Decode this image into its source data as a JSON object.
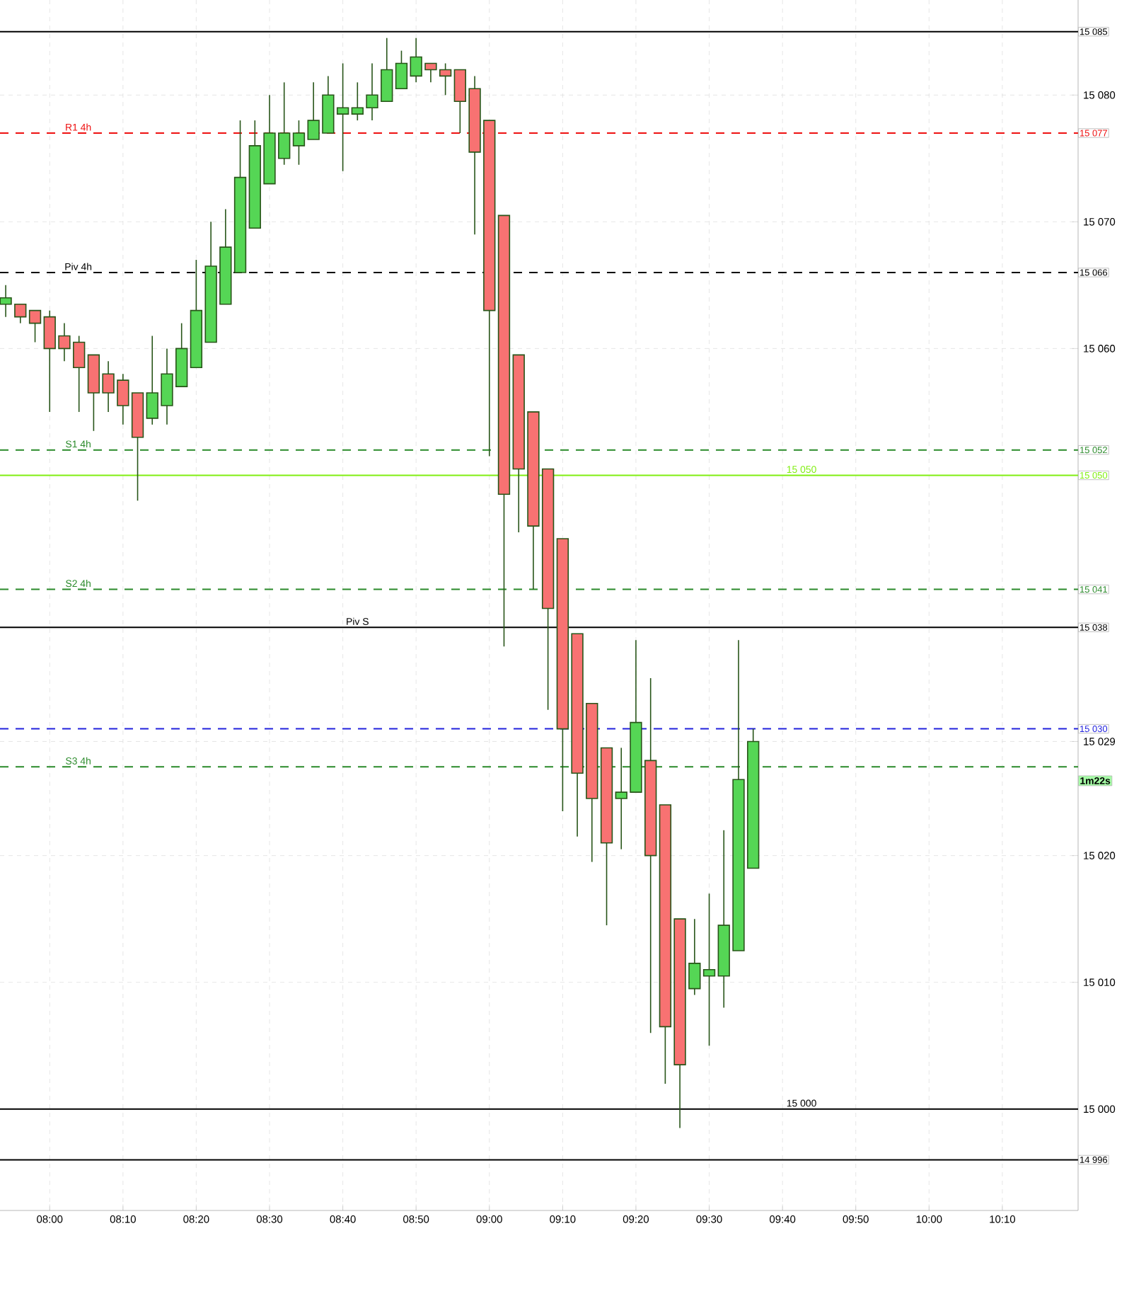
{
  "chart_data": {
    "type": "candlestick",
    "x": [
      7.9,
      7.9333,
      7.9667,
      8,
      8.0333,
      8.0667,
      8.1,
      8.1333,
      8.1667,
      8.2,
      8.2333,
      8.2667,
      8.3,
      8.3333,
      8.3667,
      8.4,
      8.4333,
      8.4667,
      8.5,
      8.5333,
      8.5667,
      8.6,
      8.6333,
      8.6667,
      8.7,
      8.7333,
      8.7667,
      8.8,
      8.8333,
      8.8667,
      8.9,
      8.9333,
      8.9667,
      9,
      9.0333,
      9.0667,
      9.1,
      9.1333,
      9.1667,
      9.2,
      9.2333,
      9.2667,
      9.3,
      9.3333,
      9.3667,
      9.4,
      9.4333,
      9.4667,
      9.5,
      9.5333,
      9.5667,
      9.6
    ],
    "ohlc": [
      [
        15063.5,
        15065,
        15062.5,
        15064
      ],
      [
        15063.5,
        15063.5,
        15062,
        15062.5
      ],
      [
        15063,
        15063,
        15060.5,
        15062
      ],
      [
        15062.5,
        15063,
        15055,
        15060
      ],
      [
        15061,
        15062,
        15059,
        15060
      ],
      [
        15060.5,
        15061,
        15055,
        15058.5
      ],
      [
        15059.5,
        15059.5,
        15053.5,
        15056.5
      ],
      [
        15058,
        15059,
        15055,
        15056.5
      ],
      [
        15057.5,
        15058,
        15054,
        15055.5
      ],
      [
        15056.5,
        15056.5,
        15048,
        15053
      ],
      [
        15054.5,
        15061,
        15054,
        15056.5
      ],
      [
        15055.5,
        15060,
        15054,
        15058
      ],
      [
        15057,
        15062,
        15057,
        15060
      ],
      [
        15058.5,
        15067,
        15058.5,
        15063
      ],
      [
        15060.5,
        15070,
        15060.5,
        15066.5
      ],
      [
        15063.5,
        15071,
        15063.5,
        15068
      ],
      [
        15066,
        15078,
        15066,
        15073.5
      ],
      [
        15069.5,
        15078,
        15069.5,
        15076
      ],
      [
        15073,
        15080,
        15073,
        15077
      ],
      [
        15075,
        15081,
        15074.5,
        15077
      ],
      [
        15076,
        15078,
        15074.5,
        15077
      ],
      [
        15076.5,
        15081,
        15076.5,
        15078
      ],
      [
        15077,
        15081.5,
        15077,
        15080
      ],
      [
        15078.5,
        15082.5,
        15074,
        15079
      ],
      [
        15078.5,
        15081,
        15078,
        15079
      ],
      [
        15079,
        15082.5,
        15078,
        15080
      ],
      [
        15079.5,
        15084.5,
        15079.5,
        15082
      ],
      [
        15080.5,
        15083.5,
        15080.5,
        15082.5
      ],
      [
        15081.5,
        15084.5,
        15081,
        15083
      ],
      [
        15082.5,
        15082.5,
        15081,
        15082
      ],
      [
        15082,
        15082.5,
        15080,
        15081.5
      ],
      [
        15082,
        15082,
        15077,
        15079.5
      ],
      [
        15080.5,
        15081.5,
        15069,
        15075.5
      ],
      [
        15078,
        15078,
        15051.5,
        15063
      ],
      [
        15070.5,
        15070.5,
        15036.5,
        15048.5
      ],
      [
        15059.5,
        15059.5,
        15045.5,
        15050.5
      ],
      [
        15055,
        15055,
        15041,
        15046
      ],
      [
        15050.5,
        15050.5,
        15031.5,
        15039.5
      ],
      [
        15045,
        15045,
        15023.5,
        15030
      ],
      [
        15037.5,
        15037.5,
        15021.5,
        15026.5
      ],
      [
        15032,
        15032,
        15019.5,
        15024.5
      ],
      [
        15028.5,
        15028.5,
        15014.5,
        15021
      ],
      [
        15024.5,
        15028.5,
        15020.5,
        15025
      ],
      [
        15025,
        15037,
        15025,
        15030.5
      ],
      [
        15027.5,
        15034,
        15006,
        15020
      ],
      [
        15024,
        15024,
        15002,
        15006.5
      ],
      [
        15015,
        15015,
        14998.5,
        15003.5
      ],
      [
        15009.5,
        15015,
        15009,
        15011.5
      ],
      [
        15010.5,
        15017,
        15005,
        15011
      ],
      [
        15010.5,
        15022,
        15008,
        15014.5
      ],
      [
        15012.5,
        15037,
        15012.5,
        15026
      ],
      [
        15019,
        15030,
        15019,
        15029
      ]
    ],
    "colors": [
      "#55d655",
      "#f87272",
      "#f87272",
      "#f87272",
      "#f87272",
      "#f87272",
      "#f87272",
      "#f87272",
      "#f87272",
      "#f87272",
      "#55d655",
      "#55d655",
      "#55d655",
      "#55d655",
      "#55d655",
      "#55d655",
      "#55d655",
      "#55d655",
      "#55d655",
      "#55d655",
      "#55d655",
      "#55d655",
      "#55d655",
      "#55d655",
      "#55d655",
      "#55d655",
      "#55d655",
      "#55d655",
      "#55d655",
      "#f87272",
      "#f87272",
      "#f87272",
      "#f87272",
      "#f87272",
      "#f87272",
      "#f87272",
      "#f87272",
      "#f87272",
      "#f87272",
      "#f87272",
      "#f87272",
      "#f87272",
      "#55d655",
      "#55d655",
      "#f87272",
      "#f87272",
      "#f87272",
      "#55d655",
      "#55d655",
      "#55d655",
      "#55d655",
      "#55d655"
    ],
    "xlim": [
      7.887,
      10.339
    ],
    "xticks": [
      {
        "value": 8,
        "label": "08:00"
      },
      {
        "value": 8.1667,
        "label": "08:10"
      },
      {
        "value": 8.3333,
        "label": "08:20"
      },
      {
        "value": 8.5,
        "label": "08:30"
      },
      {
        "value": 8.6667,
        "label": "08:40"
      },
      {
        "value": 8.8333,
        "label": "08:50"
      },
      {
        "value": 9,
        "label": "09:00"
      },
      {
        "value": 9.1667,
        "label": "09:10"
      },
      {
        "value": 9.3333,
        "label": "09:20"
      },
      {
        "value": 9.5,
        "label": "09:30"
      },
      {
        "value": 9.6667,
        "label": "09:40"
      },
      {
        "value": 9.8333,
        "label": "09:50"
      },
      {
        "value": 10,
        "label": "10:00"
      },
      {
        "value": 10.1667,
        "label": "10:10"
      }
    ],
    "ylim": [
      14992,
      15087.5
    ],
    "yticks": [
      {
        "value": 15000,
        "label": "15 000"
      },
      {
        "value": 15010,
        "label": "15 010"
      },
      {
        "value": 15020,
        "label": "15 020"
      },
      {
        "value": 15029,
        "label": "15 029"
      },
      {
        "value": 15060,
        "label": "15 060"
      },
      {
        "value": 15070,
        "label": "15 070"
      },
      {
        "value": 15080,
        "label": "15 080"
      }
    ],
    "grid": true,
    "ref_lines": [
      {
        "axis": "y",
        "value": 15085,
        "label": "15 085",
        "color": "#000000",
        "line_style": "solid"
      },
      {
        "axis": "y",
        "value": 15077,
        "label": "15 077",
        "color": "#ee1111",
        "line_style": "dashed"
      },
      {
        "axis": "y",
        "value": 15066,
        "label": "15 066",
        "color": "#000000",
        "line_style": "dashed"
      },
      {
        "axis": "y",
        "value": 15052,
        "label": "15 052",
        "color": "#2a8a2a",
        "line_style": "dashed"
      },
      {
        "axis": "y",
        "value": 15050,
        "label": "15 050",
        "color": "#80ee10",
        "line_style": "solid"
      },
      {
        "axis": "y",
        "value": 15041,
        "label": "15 041",
        "color": "#2a8a2a",
        "line_style": "dashed"
      },
      {
        "axis": "y",
        "value": 15038,
        "label": "15 038",
        "color": "#000000",
        "line_style": "solid"
      },
      {
        "axis": "y",
        "value": 15030,
        "label": "15 030",
        "color": "#2222dd",
        "line_style": "dashed"
      },
      {
        "axis": "y",
        "value": 15027,
        "color": "#2a8a2a",
        "line_style": "dashed"
      },
      {
        "axis": "y",
        "value": 15000,
        "color": "#000000",
        "line_style": "solid"
      },
      {
        "axis": "y",
        "value": 14996,
        "label": "14 996",
        "color": "#000000",
        "line_style": "solid"
      }
    ],
    "annotations": [
      {
        "text": "R1 4h",
        "x": 8.065,
        "y": 15077
      },
      {
        "text": "Piv 4h",
        "x": 8.065,
        "y": 15066
      },
      {
        "text": "S1 4h",
        "x": 8.065,
        "y": 15052
      },
      {
        "text": "15 050",
        "x": 9.71,
        "y": 15050
      },
      {
        "text": "S2 4h",
        "x": 8.065,
        "y": 15041
      },
      {
        "text": "Piv S",
        "x": 8.7,
        "y": 15038
      },
      {
        "text": "S3 4h",
        "x": 8.065,
        "y": 15027
      },
      {
        "text": "15 000",
        "x": 9.71,
        "y": 15000
      },
      "1m22s"
    ]
  }
}
